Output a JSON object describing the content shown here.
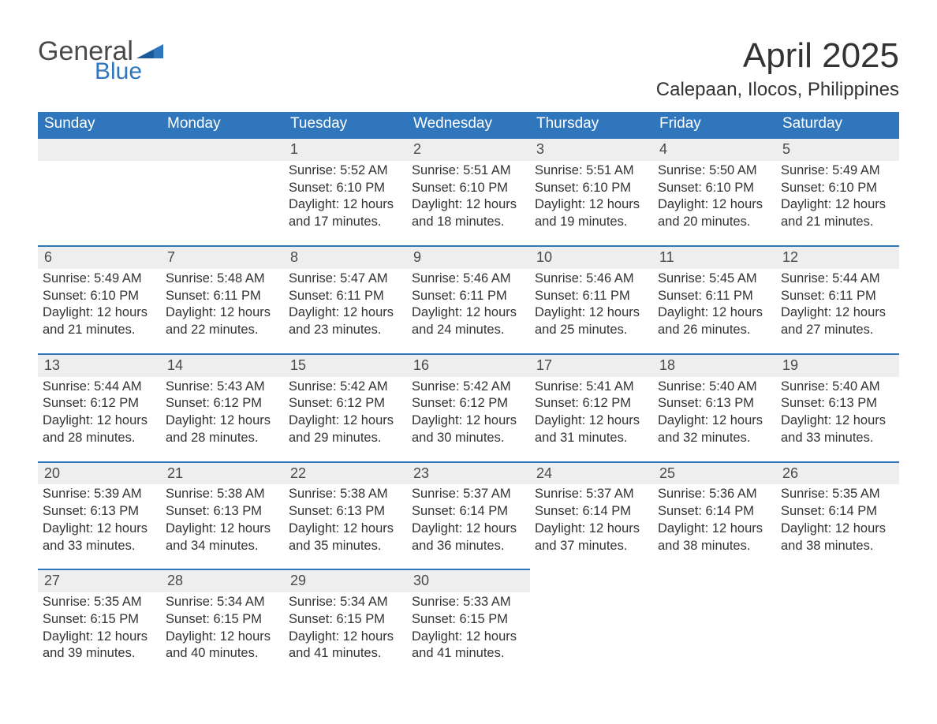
{
  "brand": {
    "word1": "General",
    "word2": "Blue",
    "word1_color": "#4a4a4a",
    "word2_color": "#2f76bc"
  },
  "title": "April 2025",
  "location": "Calepaan, Ilocos, Philippines",
  "colors": {
    "header_bg": "#2f76bc",
    "header_text": "#ffffff",
    "daynum_bg": "#eeeeee",
    "row_border": "#2f76bc",
    "body_text": "#333333",
    "page_bg": "#ffffff"
  },
  "typography": {
    "title_fontsize": 44,
    "location_fontsize": 24,
    "weekday_fontsize": 19,
    "daynum_fontsize": 18,
    "cell_fontsize": 16.5,
    "font_family": "Segoe UI / Helvetica Neue"
  },
  "weekdays": [
    "Sunday",
    "Monday",
    "Tuesday",
    "Wednesday",
    "Thursday",
    "Friday",
    "Saturday"
  ],
  "labels": {
    "sunrise": "Sunrise:",
    "sunset": "Sunset:",
    "daylight": "Daylight:"
  },
  "weeks": [
    [
      null,
      null,
      {
        "n": "1",
        "sunrise": "5:52 AM",
        "sunset": "6:10 PM",
        "daylight1": "12 hours",
        "daylight2": "and 17 minutes."
      },
      {
        "n": "2",
        "sunrise": "5:51 AM",
        "sunset": "6:10 PM",
        "daylight1": "12 hours",
        "daylight2": "and 18 minutes."
      },
      {
        "n": "3",
        "sunrise": "5:51 AM",
        "sunset": "6:10 PM",
        "daylight1": "12 hours",
        "daylight2": "and 19 minutes."
      },
      {
        "n": "4",
        "sunrise": "5:50 AM",
        "sunset": "6:10 PM",
        "daylight1": "12 hours",
        "daylight2": "and 20 minutes."
      },
      {
        "n": "5",
        "sunrise": "5:49 AM",
        "sunset": "6:10 PM",
        "daylight1": "12 hours",
        "daylight2": "and 21 minutes."
      }
    ],
    [
      {
        "n": "6",
        "sunrise": "5:49 AM",
        "sunset": "6:10 PM",
        "daylight1": "12 hours",
        "daylight2": "and 21 minutes."
      },
      {
        "n": "7",
        "sunrise": "5:48 AM",
        "sunset": "6:11 PM",
        "daylight1": "12 hours",
        "daylight2": "and 22 minutes."
      },
      {
        "n": "8",
        "sunrise": "5:47 AM",
        "sunset": "6:11 PM",
        "daylight1": "12 hours",
        "daylight2": "and 23 minutes."
      },
      {
        "n": "9",
        "sunrise": "5:46 AM",
        "sunset": "6:11 PM",
        "daylight1": "12 hours",
        "daylight2": "and 24 minutes."
      },
      {
        "n": "10",
        "sunrise": "5:46 AM",
        "sunset": "6:11 PM",
        "daylight1": "12 hours",
        "daylight2": "and 25 minutes."
      },
      {
        "n": "11",
        "sunrise": "5:45 AM",
        "sunset": "6:11 PM",
        "daylight1": "12 hours",
        "daylight2": "and 26 minutes."
      },
      {
        "n": "12",
        "sunrise": "5:44 AM",
        "sunset": "6:11 PM",
        "daylight1": "12 hours",
        "daylight2": "and 27 minutes."
      }
    ],
    [
      {
        "n": "13",
        "sunrise": "5:44 AM",
        "sunset": "6:12 PM",
        "daylight1": "12 hours",
        "daylight2": "and 28 minutes."
      },
      {
        "n": "14",
        "sunrise": "5:43 AM",
        "sunset": "6:12 PM",
        "daylight1": "12 hours",
        "daylight2": "and 28 minutes."
      },
      {
        "n": "15",
        "sunrise": "5:42 AM",
        "sunset": "6:12 PM",
        "daylight1": "12 hours",
        "daylight2": "and 29 minutes."
      },
      {
        "n": "16",
        "sunrise": "5:42 AM",
        "sunset": "6:12 PM",
        "daylight1": "12 hours",
        "daylight2": "and 30 minutes."
      },
      {
        "n": "17",
        "sunrise": "5:41 AM",
        "sunset": "6:12 PM",
        "daylight1": "12 hours",
        "daylight2": "and 31 minutes."
      },
      {
        "n": "18",
        "sunrise": "5:40 AM",
        "sunset": "6:13 PM",
        "daylight1": "12 hours",
        "daylight2": "and 32 minutes."
      },
      {
        "n": "19",
        "sunrise": "5:40 AM",
        "sunset": "6:13 PM",
        "daylight1": "12 hours",
        "daylight2": "and 33 minutes."
      }
    ],
    [
      {
        "n": "20",
        "sunrise": "5:39 AM",
        "sunset": "6:13 PM",
        "daylight1": "12 hours",
        "daylight2": "and 33 minutes."
      },
      {
        "n": "21",
        "sunrise": "5:38 AM",
        "sunset": "6:13 PM",
        "daylight1": "12 hours",
        "daylight2": "and 34 minutes."
      },
      {
        "n": "22",
        "sunrise": "5:38 AM",
        "sunset": "6:13 PM",
        "daylight1": "12 hours",
        "daylight2": "and 35 minutes."
      },
      {
        "n": "23",
        "sunrise": "5:37 AM",
        "sunset": "6:14 PM",
        "daylight1": "12 hours",
        "daylight2": "and 36 minutes."
      },
      {
        "n": "24",
        "sunrise": "5:37 AM",
        "sunset": "6:14 PM",
        "daylight1": "12 hours",
        "daylight2": "and 37 minutes."
      },
      {
        "n": "25",
        "sunrise": "5:36 AM",
        "sunset": "6:14 PM",
        "daylight1": "12 hours",
        "daylight2": "and 38 minutes."
      },
      {
        "n": "26",
        "sunrise": "5:35 AM",
        "sunset": "6:14 PM",
        "daylight1": "12 hours",
        "daylight2": "and 38 minutes."
      }
    ],
    [
      {
        "n": "27",
        "sunrise": "5:35 AM",
        "sunset": "6:15 PM",
        "daylight1": "12 hours",
        "daylight2": "and 39 minutes."
      },
      {
        "n": "28",
        "sunrise": "5:34 AM",
        "sunset": "6:15 PM",
        "daylight1": "12 hours",
        "daylight2": "and 40 minutes."
      },
      {
        "n": "29",
        "sunrise": "5:34 AM",
        "sunset": "6:15 PM",
        "daylight1": "12 hours",
        "daylight2": "and 41 minutes."
      },
      {
        "n": "30",
        "sunrise": "5:33 AM",
        "sunset": "6:15 PM",
        "daylight1": "12 hours",
        "daylight2": "and 41 minutes."
      },
      null,
      null,
      null
    ]
  ]
}
